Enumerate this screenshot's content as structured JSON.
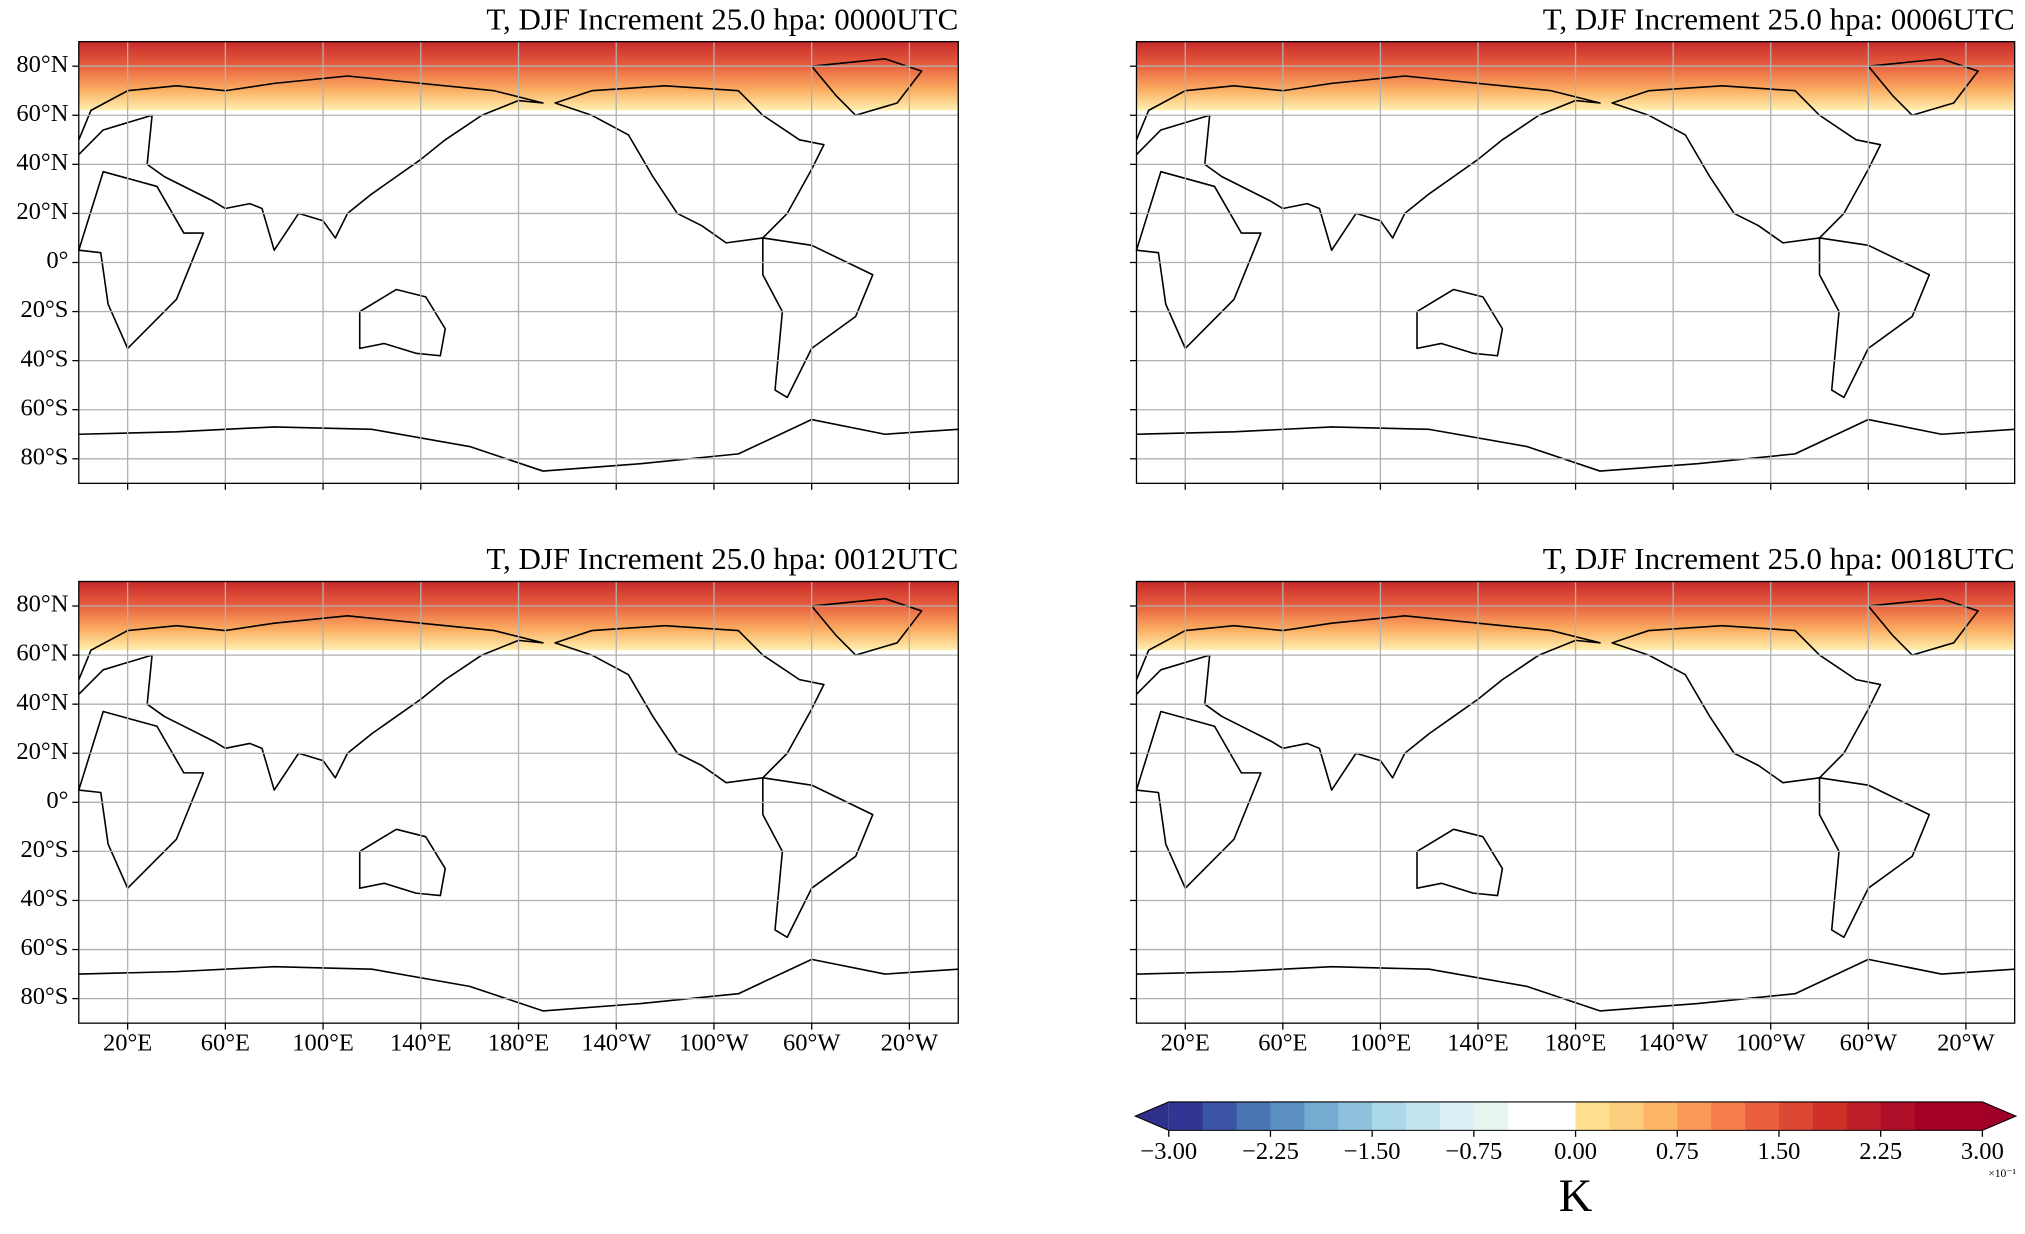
{
  "panels": [
    {
      "title": "T, DJF Increment 25.0 hpa: 0000UTC"
    },
    {
      "title": "T, DJF Increment 25.0 hpa: 0006UTC"
    },
    {
      "title": "T, DJF Increment 25.0 hpa: 0012UTC"
    },
    {
      "title": "T, DJF Increment 25.0 hpa: 0018UTC"
    }
  ],
  "lon_range": [
    0,
    360
  ],
  "lat_range": [
    -90,
    90
  ],
  "lat_ticks": [
    {
      "value": 80,
      "label": "80°N"
    },
    {
      "value": 60,
      "label": "60°N"
    },
    {
      "value": 40,
      "label": "40°N"
    },
    {
      "value": 20,
      "label": "20°N"
    },
    {
      "value": 0,
      "label": "0°"
    },
    {
      "value": -20,
      "label": "20°S"
    },
    {
      "value": -40,
      "label": "40°S"
    },
    {
      "value": -60,
      "label": "60°S"
    },
    {
      "value": -80,
      "label": "80°S"
    }
  ],
  "lon_ticks": [
    {
      "value": 20,
      "label": "20°E"
    },
    {
      "value": 60,
      "label": "60°E"
    },
    {
      "value": 100,
      "label": "100°E"
    },
    {
      "value": 140,
      "label": "140°E"
    },
    {
      "value": 180,
      "label": "180°E"
    },
    {
      "value": -140,
      "label": "140°W"
    },
    {
      "value": -100,
      "label": "100°W"
    },
    {
      "value": -60,
      "label": "60°W"
    },
    {
      "value": -20,
      "label": "20°W"
    }
  ],
  "colorbar": {
    "label": "K",
    "offset_label": "×10⁻¹",
    "extend": "both",
    "range": [
      -3,
      3
    ],
    "colors": [
      "#313695",
      "#3b55a4",
      "#4a74b4",
      "#5d90c2",
      "#74add1",
      "#8fc3dd",
      "#abd9e9",
      "#c4e5f0",
      "#dbeff6",
      "#e8f5ee",
      "#ffffff",
      "#ffffff",
      "#fee090",
      "#fdcd7e",
      "#fdb567",
      "#fa9a57",
      "#f57d4a",
      "#ea5f3e",
      "#dc4834",
      "#cf3128",
      "#bd1f29",
      "#ad1028",
      "#a50026",
      "#a50026"
    ],
    "under_color": "#2f2f8c",
    "over_color": "#9e0027",
    "ticks": [
      {
        "value": -3,
        "label": "−3.00"
      },
      {
        "value": -2.25,
        "label": "−2.25"
      },
      {
        "value": -1.5,
        "label": "−1.50"
      },
      {
        "value": -0.75,
        "label": "−0.75"
      },
      {
        "value": 0,
        "label": "0.00"
      },
      {
        "value": 0.75,
        "label": "0.75"
      },
      {
        "value": 1.5,
        "label": "1.50"
      },
      {
        "value": 2.25,
        "label": "2.25"
      },
      {
        "value": 3,
        "label": "3.00"
      }
    ]
  }
}
